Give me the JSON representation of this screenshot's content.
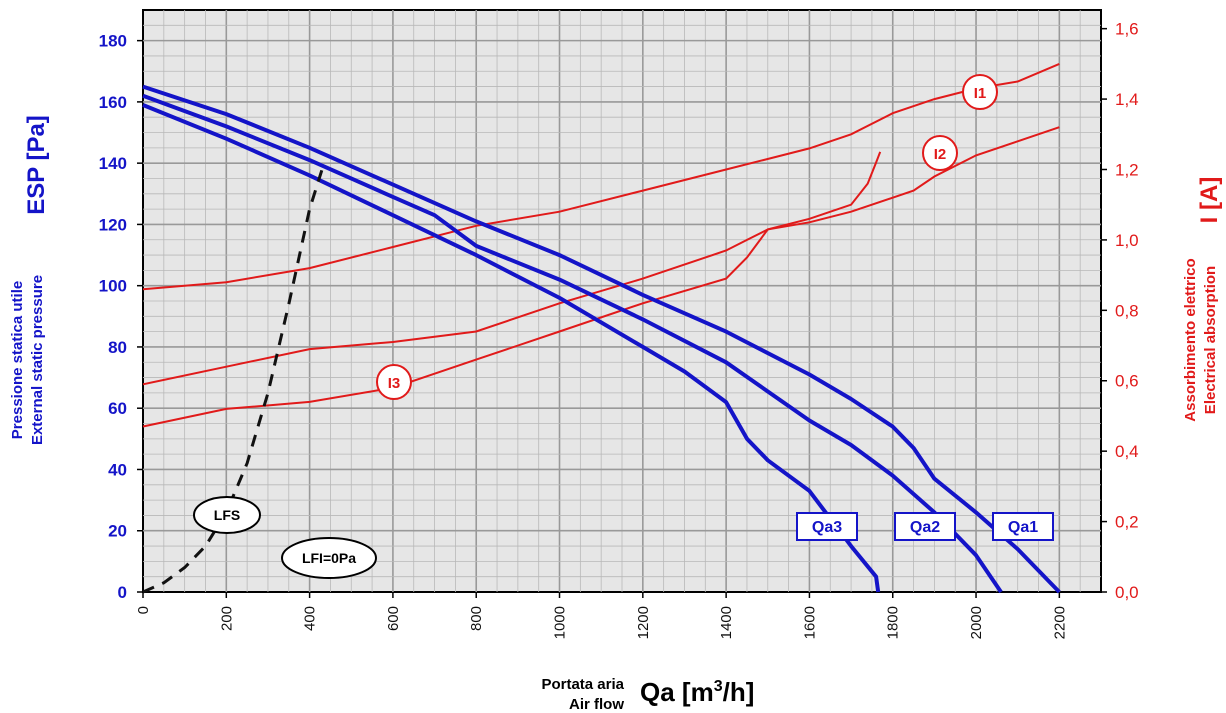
{
  "chart_data": {
    "type": "line",
    "xlabel_small": [
      "Portata aria",
      "Air flow"
    ],
    "xlabel_main": "Qa  [m",
    "xlabel_sup": "3",
    "xlabel_tail": "/h]",
    "ylabel_left_main": "ESP  [Pa]",
    "ylabel_left_small": [
      "Pressione statica utile",
      "External static pressure"
    ],
    "ylabel_right_main": "I  [A]",
    "ylabel_right_small": [
      "Assorbimento elettrico",
      "Electrical absorption"
    ],
    "xlim": [
      0,
      2300
    ],
    "ylim_left": [
      0,
      190
    ],
    "ylim_right": [
      0,
      1.653
    ],
    "x_ticks": [
      "0",
      "200",
      "400",
      "600",
      "800",
      "1000",
      "1200",
      "1400",
      "1600",
      "1800",
      "2000",
      "2200"
    ],
    "y_left_ticks": [
      "0",
      "20",
      "40",
      "60",
      "80",
      "100",
      "120",
      "140",
      "160",
      "180"
    ],
    "y_right_ticks": [
      "0,0",
      "0,2",
      "0,4",
      "0,6",
      "0,8",
      "1,0",
      "1,2",
      "1,4",
      "1,6"
    ],
    "grid": true,
    "colors": {
      "pressure": "#1414c8",
      "current": "#e11a1a",
      "system": "#111111",
      "plot_bg": "#e6e6e6"
    },
    "pressure_series": [
      {
        "name": "Qa1",
        "x": [
          0,
          200,
          400,
          600,
          800,
          1000,
          1200,
          1400,
          1600,
          1700,
          1800,
          1850,
          1900,
          2000,
          2100,
          2200
        ],
        "y": [
          165,
          156,
          145,
          133,
          121,
          110,
          97,
          85,
          71,
          63,
          54,
          47,
          37,
          26,
          14,
          0
        ]
      },
      {
        "name": "Qa2",
        "x": [
          0,
          200,
          400,
          600,
          700,
          800,
          1000,
          1200,
          1400,
          1600,
          1700,
          1800,
          1900,
          2000,
          2060
        ],
        "y": [
          162,
          152,
          141,
          129,
          123,
          113,
          102,
          89,
          75,
          56,
          48,
          38,
          26,
          12,
          0
        ]
      },
      {
        "name": "Qa3",
        "x": [
          0,
          200,
          400,
          600,
          800,
          1000,
          1200,
          1300,
          1400,
          1450,
          1500,
          1600,
          1700,
          1760,
          1765
        ],
        "y": [
          159,
          148,
          136,
          123,
          110,
          96,
          80,
          72,
          62,
          50,
          43,
          33,
          15,
          5,
          0
        ]
      }
    ],
    "current_series": [
      {
        "name": "I1",
        "x": [
          0,
          200,
          400,
          600,
          800,
          1000,
          1200,
          1400,
          1600,
          1700,
          1800,
          1900,
          2000,
          2100,
          2200
        ],
        "y": [
          0.86,
          0.88,
          0.92,
          0.98,
          1.04,
          1.08,
          1.14,
          1.2,
          1.26,
          1.3,
          1.36,
          1.4,
          1.43,
          1.45,
          1.5
        ]
      },
      {
        "name": "I2",
        "x": [
          0,
          200,
          400,
          600,
          800,
          1000,
          1200,
          1400,
          1450,
          1500,
          1600,
          1700,
          1800,
          1850,
          1900,
          2000,
          2100,
          2200
        ],
        "y": [
          0.59,
          0.64,
          0.69,
          0.71,
          0.74,
          0.82,
          0.89,
          0.97,
          1.0,
          1.03,
          1.05,
          1.08,
          1.12,
          1.14,
          1.18,
          1.24,
          1.28,
          1.32
        ]
      },
      {
        "name": "I3",
        "x": [
          0,
          200,
          400,
          600,
          800,
          1000,
          1200,
          1400,
          1450,
          1500,
          1600,
          1700,
          1740,
          1760,
          1770
        ],
        "y": [
          0.47,
          0.52,
          0.54,
          0.58,
          0.66,
          0.74,
          0.82,
          0.89,
          0.95,
          1.03,
          1.06,
          1.1,
          1.16,
          1.22,
          1.25
        ]
      }
    ],
    "system_curve": {
      "name": "LFS",
      "x": [
        0,
        50,
        100,
        150,
        200,
        250,
        300,
        350,
        400,
        430
      ],
      "y": [
        0,
        3,
        8,
        15,
        26,
        42,
        65,
        94,
        125,
        138
      ]
    },
    "annotations": {
      "lfs": "LFS",
      "lfi": "LFI=0Pa",
      "qa1": "Qa1",
      "qa2": "Qa2",
      "qa3": "Qa3",
      "i1": "I1",
      "i2": "I2",
      "i3": "I3"
    }
  }
}
